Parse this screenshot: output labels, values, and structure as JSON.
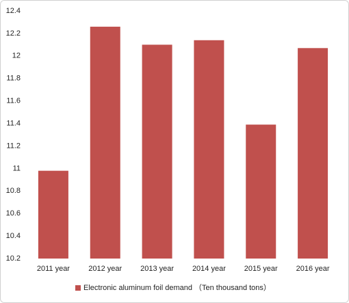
{
  "chart_data": {
    "type": "bar",
    "categories": [
      "2011 year",
      "2012 year",
      "2013 year",
      "2014 year",
      "2015 year",
      "2016 year"
    ],
    "series": [
      {
        "name": "Electronic aluminum foil demand （Ten thousand tons）",
        "color": "#c0504d",
        "values": [
          10.98,
          12.26,
          12.1,
          12.14,
          11.39,
          12.07
        ]
      }
    ],
    "ylim": [
      10.2,
      12.4
    ],
    "yticks": [
      10.2,
      10.4,
      10.6,
      10.8,
      11,
      11.2,
      11.4,
      11.6,
      11.8,
      12,
      12.2,
      12.4
    ],
    "grid": false,
    "legend": "bottom"
  }
}
